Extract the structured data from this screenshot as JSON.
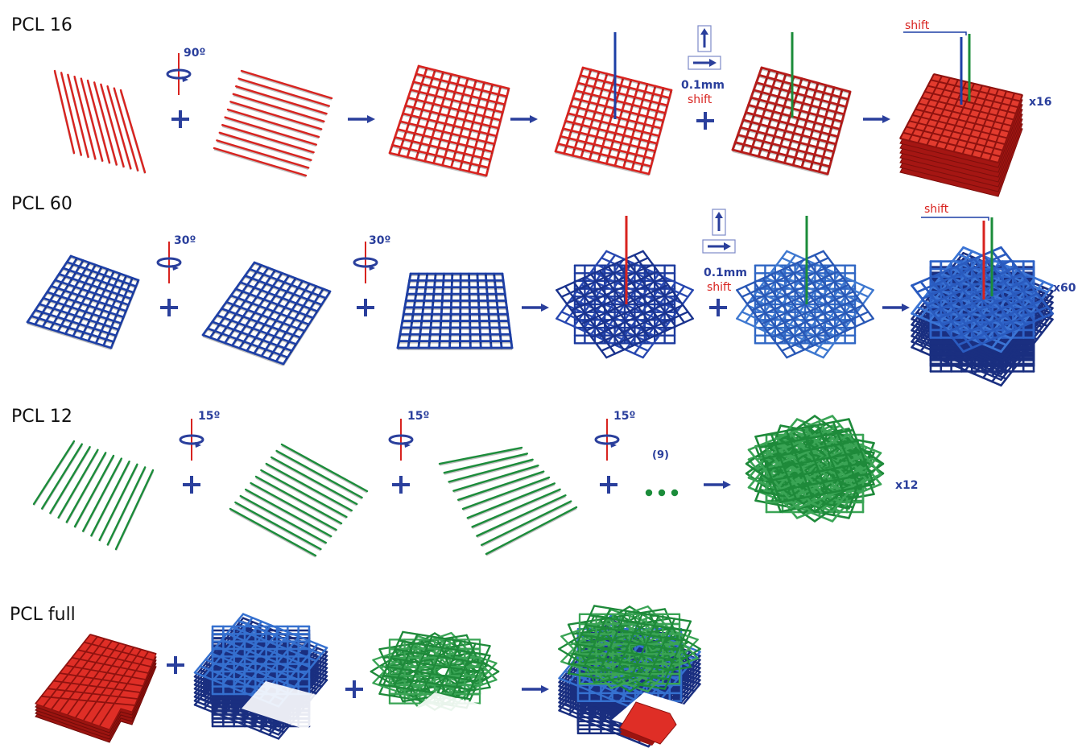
{
  "rows": [
    {
      "title": "PCL 16",
      "angle": "90º",
      "shift_amount": "0.1mm",
      "shift_word": "shift",
      "top_shift": "shift",
      "multiplier": "x16"
    },
    {
      "title": "PCL 60",
      "angle_a": "30º",
      "angle_b": "30º",
      "shift_amount": "0.1mm",
      "shift_word": "shift",
      "top_shift": "shift",
      "multiplier": "x60"
    },
    {
      "title": "PCL 12",
      "angle_a": "15º",
      "angle_b": "15º",
      "angle_c": "15º",
      "repeat": "(9)",
      "multiplier": "x12"
    },
    {
      "title": "PCL full"
    }
  ],
  "colors": {
    "red": "#d8231f",
    "blue": "#1d3fa6",
    "green": "#1b8c3a",
    "operator": "#2a3f9c"
  }
}
